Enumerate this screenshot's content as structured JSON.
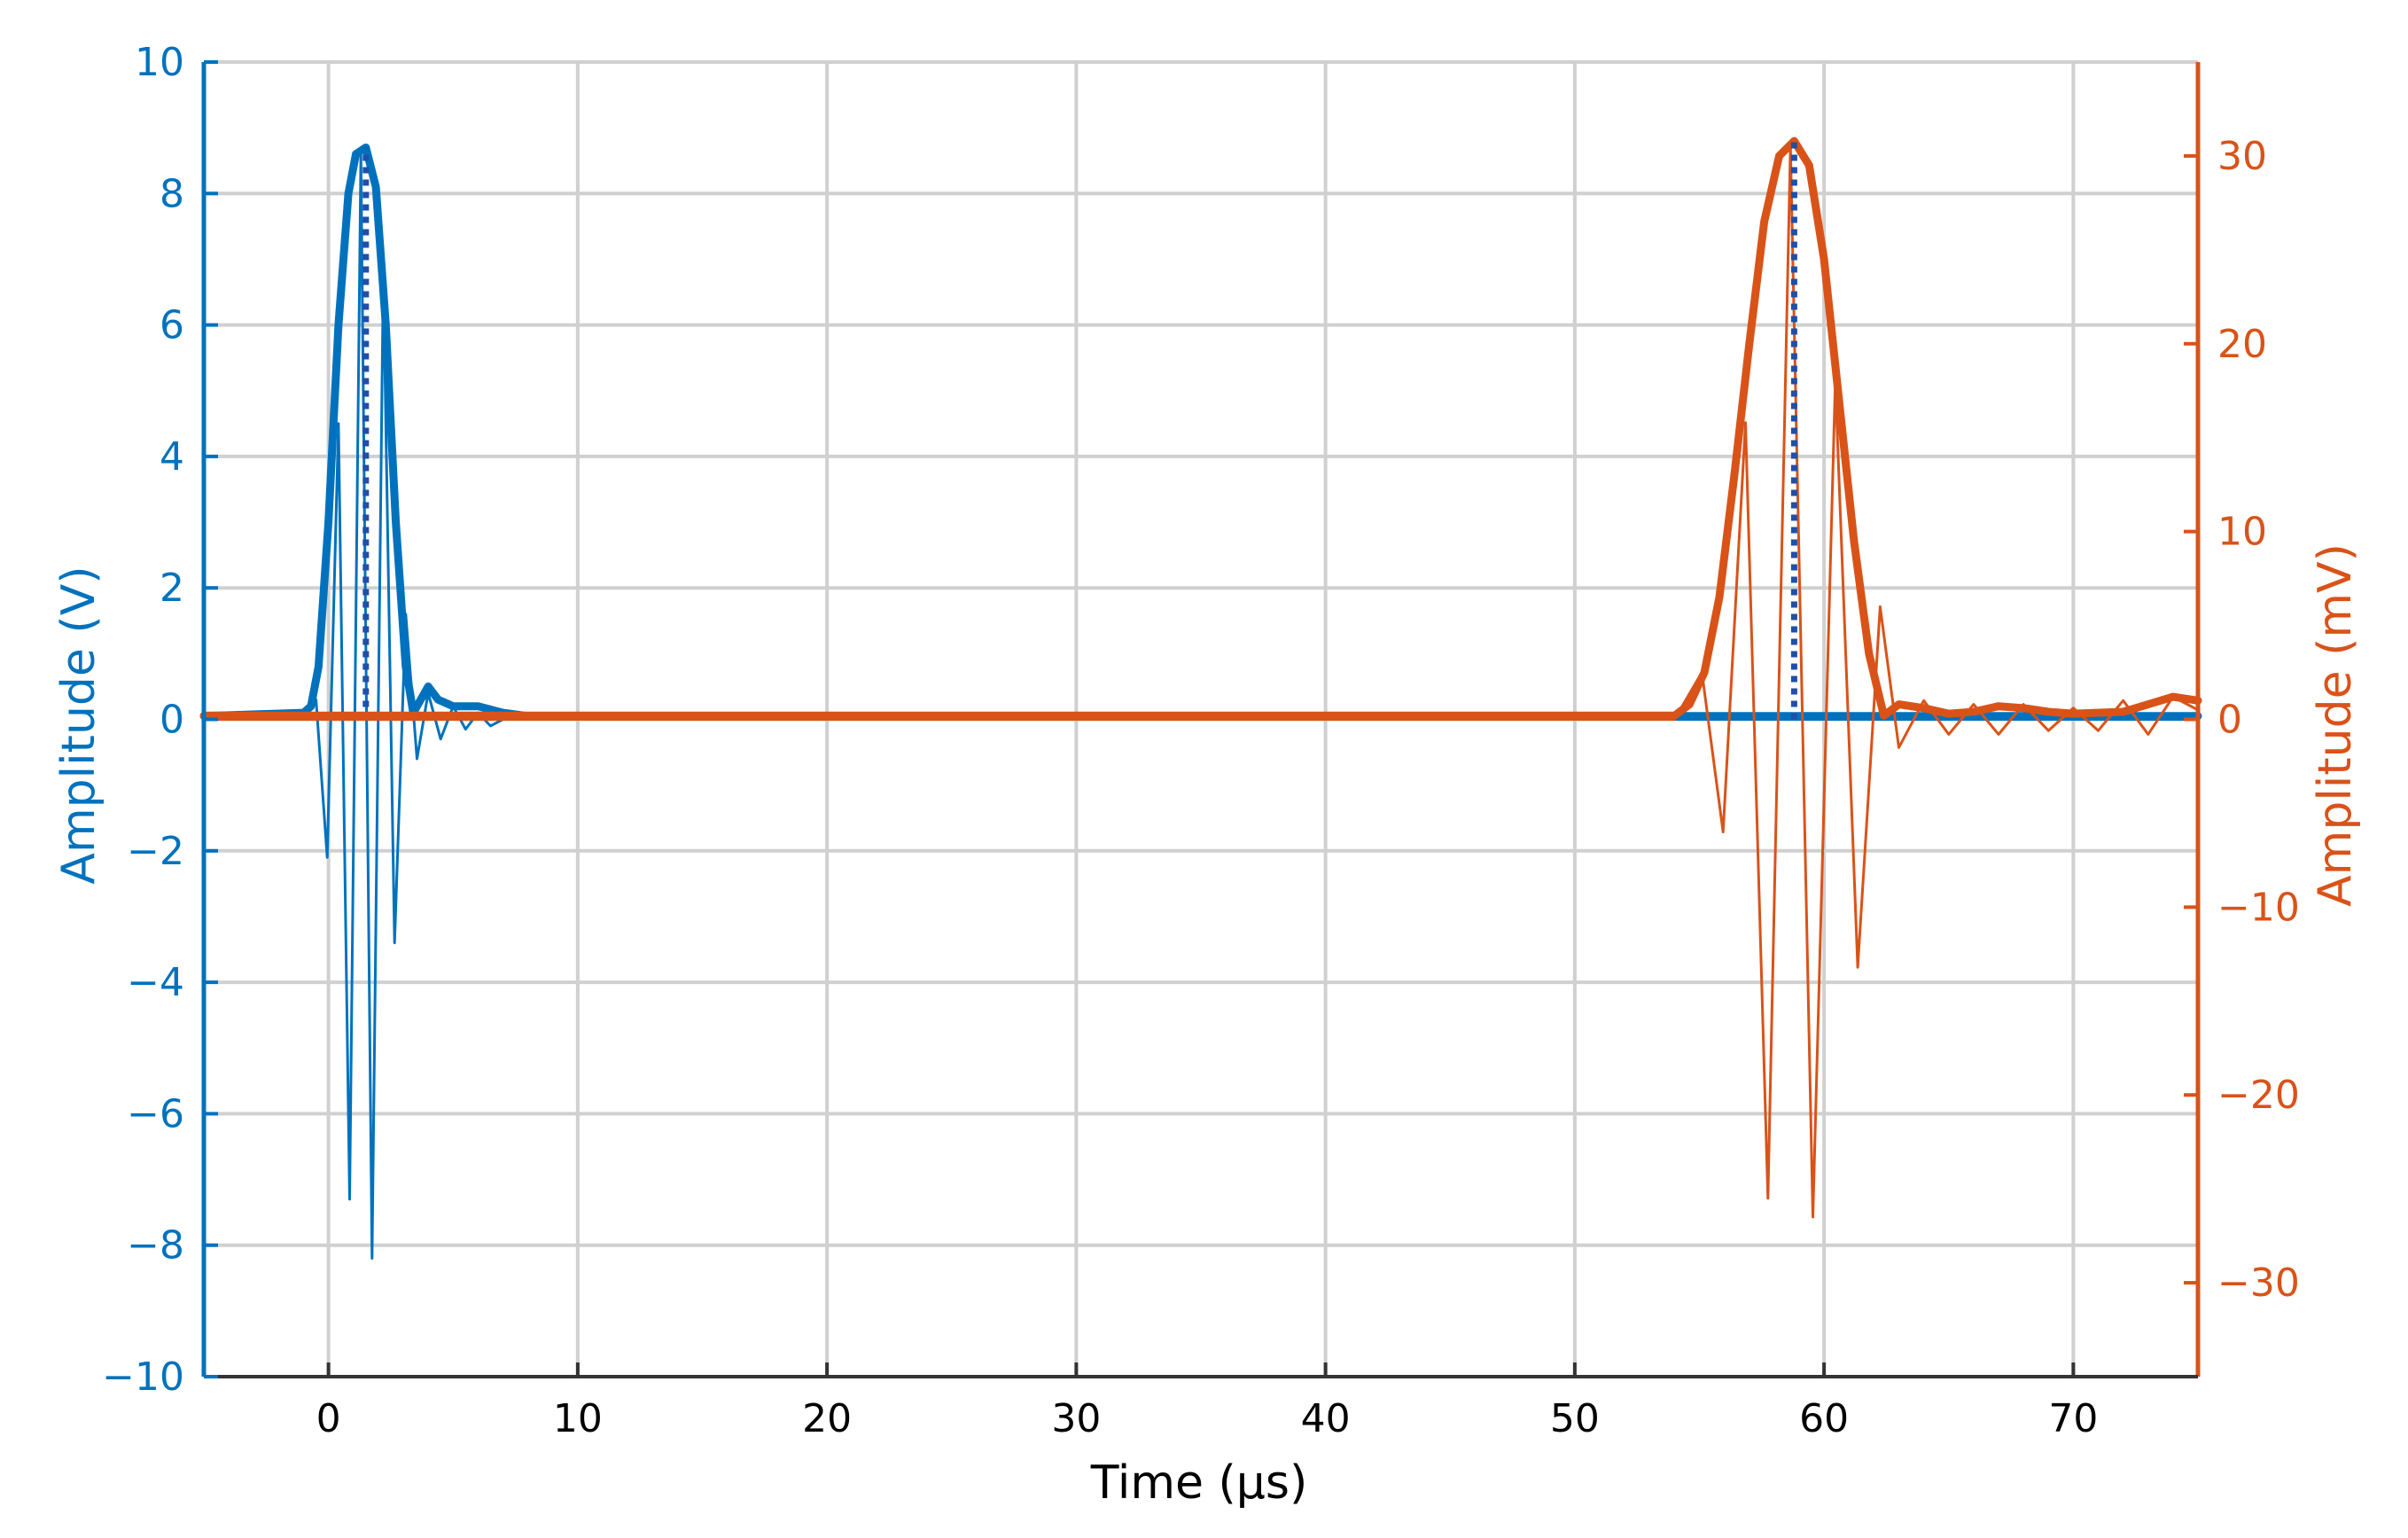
{
  "chart_data": {
    "type": "line",
    "title": "",
    "xlabel": "Time (µs)",
    "ylabel_left": "Amplitude (V)",
    "ylabel_right": "Amplitude (mV)",
    "xlim": [
      -5,
      75
    ],
    "ylim_left": [
      -10,
      10
    ],
    "ylim_right": [
      -35,
      35
    ],
    "x_ticks": [
      0,
      10,
      20,
      30,
      40,
      50,
      60,
      70
    ],
    "y_ticks_left": [
      -10,
      -8,
      -6,
      -4,
      -2,
      0,
      2,
      4,
      6,
      8,
      10
    ],
    "y_ticks_right": [
      -30,
      -20,
      -10,
      0,
      10,
      20,
      30
    ],
    "x_tick_labels": [
      "0",
      "10",
      "20",
      "30",
      "40",
      "50",
      "60",
      "70"
    ],
    "y_tick_labels_left": [
      "−10",
      "−8",
      "−6",
      "−4",
      "−2",
      "0",
      "2",
      "4",
      "6",
      "8",
      "10"
    ],
    "y_tick_labels_right": [
      "−30",
      "−20",
      "−10",
      "0",
      "10",
      "20",
      "30"
    ],
    "grid": true,
    "colors": {
      "left": "#0072BD",
      "right": "#D95319",
      "marker": "#1f4fa8"
    },
    "series": [
      {
        "axis": "left",
        "style": "thin oscillating burst",
        "color": "#0072BD",
        "x": [
          -5,
          -1,
          -0.5,
          -0.05,
          0.4,
          0.85,
          1.3,
          1.75,
          2.2,
          2.65,
          3.1,
          3.55,
          4.0,
          4.5,
          5.0,
          5.5,
          6.0,
          6.5,
          7,
          10,
          75
        ],
        "y": [
          0,
          0.05,
          0.3,
          -2.1,
          4.5,
          -7.3,
          8.6,
          -8.2,
          6.8,
          -3.4,
          1.6,
          -0.6,
          0.4,
          -0.3,
          0.2,
          -0.15,
          0.1,
          -0.1,
          0,
          0,
          0
        ]
      },
      {
        "axis": "left",
        "style": "thick envelope",
        "color": "#0072BD",
        "x": [
          -5,
          -1,
          -0.7,
          -0.4,
          0,
          0.4,
          0.8,
          1.1,
          1.5,
          1.9,
          2.3,
          2.7,
          3.1,
          3.4,
          3.7,
          4.0,
          4.4,
          5.0,
          6.0,
          7.0,
          8.0,
          10.0,
          75
        ],
        "y": [
          0.05,
          0.1,
          0.2,
          0.8,
          3.0,
          6.0,
          8.0,
          8.6,
          8.7,
          8.1,
          6.0,
          3.0,
          0.8,
          0.1,
          0.3,
          0.5,
          0.3,
          0.2,
          0.2,
          0.1,
          0.05,
          0.05,
          0.05
        ]
      },
      {
        "axis": "left",
        "style": "dotted peak marker",
        "color": "#1f4fa8",
        "x": [
          1.5,
          1.5
        ],
        "y": [
          0,
          8.7
        ]
      },
      {
        "axis": "right",
        "style": "thin oscillating burst",
        "color": "#D95319",
        "x": [
          -5,
          54,
          55.1,
          55.95,
          56.85,
          57.75,
          58.65,
          59.55,
          60.45,
          61.35,
          62.25,
          63.0,
          64.0,
          65.0,
          66.0,
          67.0,
          68.0,
          69.0,
          70.0,
          71.0,
          72.0,
          73.0,
          74.0,
          75.0
        ],
        "y": [
          0,
          0,
          2.5,
          -6,
          15.8,
          -25.5,
          30.5,
          -26.5,
          18,
          -13.2,
          6,
          -1.5,
          1.0,
          -0.8,
          0.8,
          -0.8,
          0.8,
          -0.6,
          0.6,
          -0.6,
          1.0,
          -0.8,
          1.2,
          0.5
        ]
      },
      {
        "axis": "right",
        "style": "thick envelope",
        "color": "#D95319",
        "x": [
          -5,
          54,
          54.6,
          55.2,
          55.8,
          56.4,
          57.0,
          57.6,
          58.2,
          58.8,
          59.4,
          60.0,
          60.6,
          61.2,
          61.8,
          62.4,
          63.0,
          64.0,
          65.0,
          66.0,
          67.0,
          68.0,
          69.0,
          70.0,
          72.0,
          73.0,
          74.0,
          75.0
        ],
        "y": [
          0.2,
          0.2,
          0.8,
          2.5,
          6.5,
          13,
          20,
          26.5,
          30,
          30.8,
          29.5,
          24.5,
          17,
          9.5,
          3.5,
          0.2,
          0.8,
          0.6,
          0.3,
          0.4,
          0.7,
          0.6,
          0.4,
          0.3,
          0.4,
          0.8,
          1.2,
          1.0
        ]
      },
      {
        "axis": "right",
        "style": "dotted peak marker",
        "color": "#1f4fa8",
        "x": [
          58.8,
          58.8
        ],
        "y": [
          0,
          30.8
        ]
      }
    ]
  }
}
